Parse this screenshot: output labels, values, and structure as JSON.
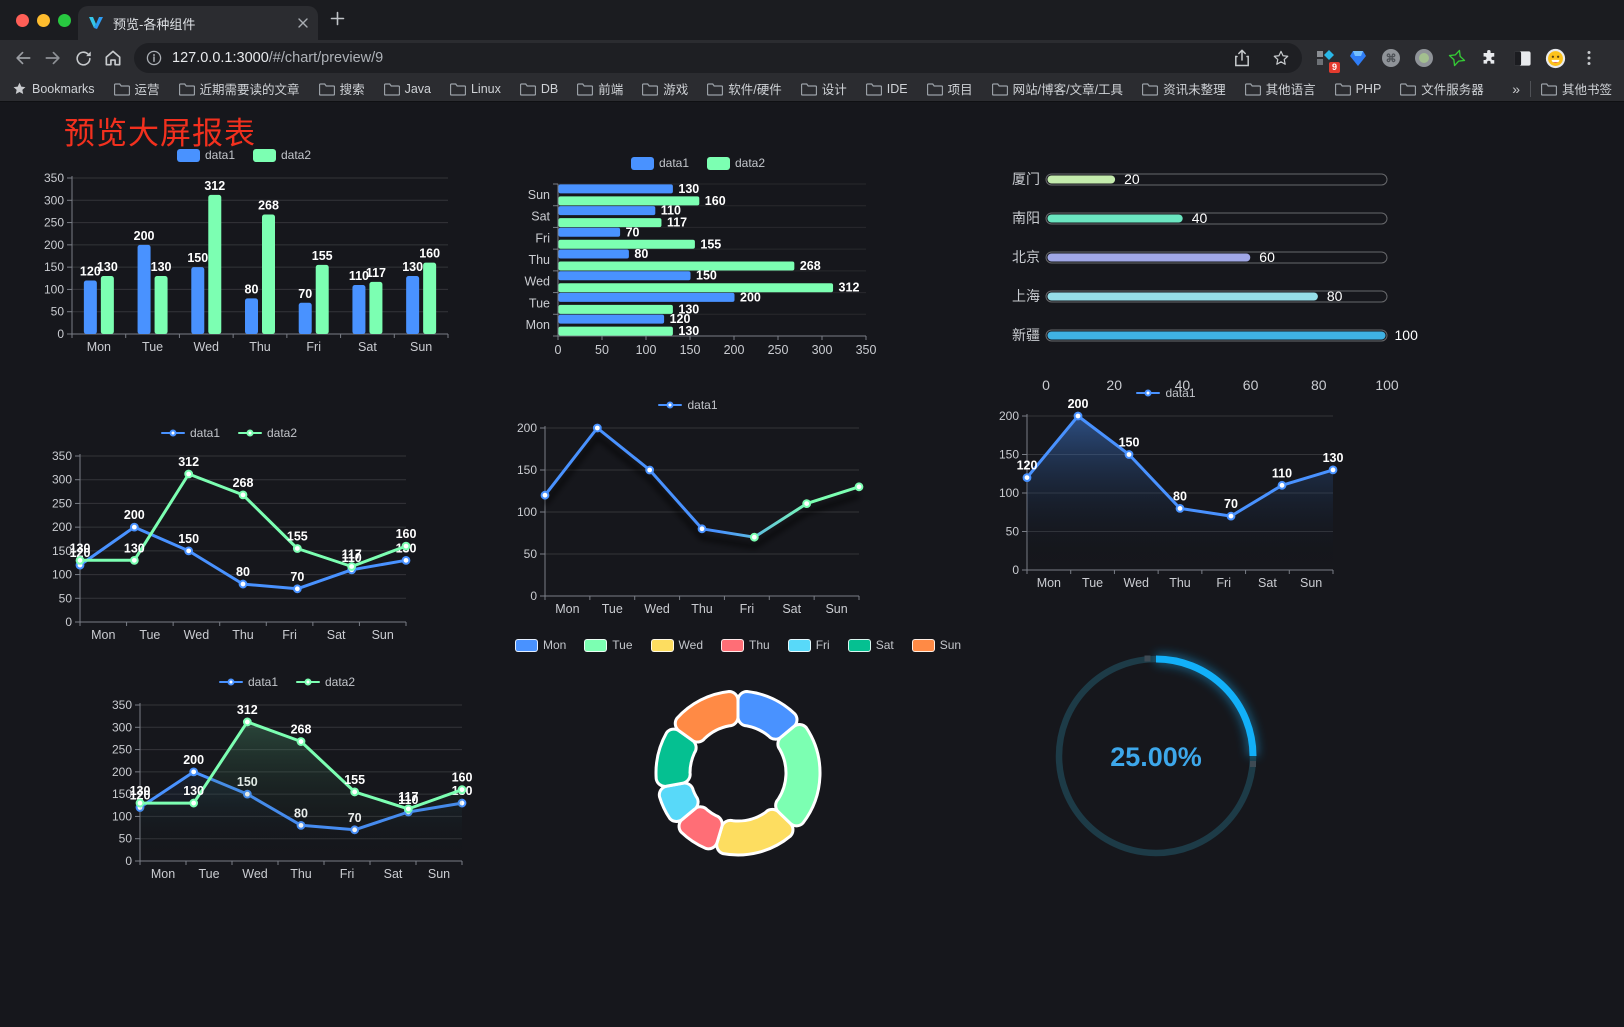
{
  "window": {
    "tab_title": "预览-各种组件",
    "url_host": "127.0.0.1:3000",
    "url_path": "/#/chart/preview/9",
    "extension_badge": "9"
  },
  "bookmarks": {
    "root_label": "Bookmarks",
    "items": [
      "运营",
      "近期需要读的文章",
      "搜索",
      "Java",
      "Linux",
      "DB",
      "前端",
      "游戏",
      "软件/硬件",
      "设计",
      "IDE",
      "项目",
      "网站/博客/文章/工具",
      "资讯未整理",
      "其他语言",
      "PHP",
      "文件服务器"
    ],
    "overflow_label": "»",
    "other_label": "其他书签"
  },
  "page": {
    "title": "预览大屏报表",
    "title_color": "#f2301e",
    "background": "#16171c"
  },
  "icons": [
    "back-icon",
    "forward-icon",
    "reload-icon",
    "home-icon",
    "info-icon",
    "share-icon",
    "star-icon",
    "folder-icon",
    "puzzle-icon",
    "menu-dots-icon",
    "close-icon",
    "new-tab-icon"
  ],
  "chart_data": [
    {
      "id": "bar-vertical",
      "type": "bar",
      "legend": true,
      "legend_icon": "rect",
      "categories": [
        "Mon",
        "Tue",
        "Wed",
        "Thu",
        "Fri",
        "Sat",
        "Sun"
      ],
      "series": [
        {
          "name": "data1",
          "color": "#4992ff",
          "values": [
            120,
            200,
            150,
            80,
            70,
            110,
            130
          ]
        },
        {
          "name": "data2",
          "color": "#7cffb2",
          "values": [
            130,
            130,
            312,
            268,
            155,
            117,
            160
          ]
        }
      ],
      "ylim": [
        0,
        350
      ],
      "ystep": 50,
      "labels": true
    },
    {
      "id": "bar-horizontal",
      "type": "hbar",
      "legend": true,
      "legend_icon": "rect",
      "categories": [
        "Mon",
        "Tue",
        "Wed",
        "Thu",
        "Fri",
        "Sat",
        "Sun"
      ],
      "series": [
        {
          "name": "data1",
          "color": "#4992ff",
          "values": [
            120,
            200,
            150,
            80,
            70,
            110,
            130
          ]
        },
        {
          "name": "data2",
          "color": "#7cffb2",
          "values": [
            130,
            130,
            312,
            268,
            155,
            117,
            160
          ]
        }
      ],
      "xlim": [
        0,
        350
      ],
      "xstep": 50,
      "labels": true
    },
    {
      "id": "progress-bars",
      "type": "progress",
      "max": 100,
      "ticks": [
        0,
        20,
        40,
        60,
        80,
        100
      ],
      "items": [
        {
          "label": "厦门",
          "value": 20,
          "color": "#c4ebad"
        },
        {
          "label": "南阳",
          "value": 40,
          "color": "#6be6c1"
        },
        {
          "label": "北京",
          "value": 60,
          "color": "#a0a7e6"
        },
        {
          "label": "上海",
          "value": 80,
          "color": "#96dee8"
        },
        {
          "label": "新疆",
          "value": 100,
          "color": "#3fb1e3"
        }
      ]
    },
    {
      "id": "line-two-series",
      "type": "line",
      "legend": true,
      "legend_icon": "line",
      "categories": [
        "Mon",
        "Tue",
        "Wed",
        "Thu",
        "Fri",
        "Sat",
        "Sun"
      ],
      "series": [
        {
          "name": "data1",
          "color": "#4992ff",
          "values": [
            120,
            200,
            150,
            80,
            70,
            110,
            130
          ]
        },
        {
          "name": "data2",
          "color": "#7cffb2",
          "values": [
            130,
            130,
            312,
            268,
            155,
            117,
            160
          ]
        }
      ],
      "ylim": [
        0,
        350
      ],
      "ystep": 50,
      "labels": true
    },
    {
      "id": "line-gradient",
      "type": "line",
      "legend": true,
      "legend_icon": "line",
      "categories": [
        "Mon",
        "Tue",
        "Wed",
        "Thu",
        "Fri",
        "Sat",
        "Sun"
      ],
      "series": [
        {
          "name": "data1",
          "color": "#4992ff",
          "color_end": "#7cffb2",
          "values": [
            120,
            200,
            150,
            80,
            70,
            110,
            130
          ]
        }
      ],
      "ylim": [
        0,
        200
      ],
      "ystep": 50,
      "labels": false,
      "gradient": true,
      "shadow": true
    },
    {
      "id": "line-area",
      "type": "line",
      "legend": true,
      "legend_icon": "line",
      "categories": [
        "Mon",
        "Tue",
        "Wed",
        "Thu",
        "Fri",
        "Sat",
        "Sun"
      ],
      "series": [
        {
          "name": "data1",
          "color": "#4992ff",
          "values": [
            120,
            200,
            150,
            80,
            70,
            110,
            130
          ],
          "area": "rgba(73,146,255,0.45)"
        }
      ],
      "ylim": [
        0,
        200
      ],
      "ystep": 50,
      "labels": true
    },
    {
      "id": "area-two-series",
      "type": "line",
      "legend": true,
      "legend_icon": "line",
      "categories": [
        "Mon",
        "Tue",
        "Wed",
        "Thu",
        "Fri",
        "Sat",
        "Sun"
      ],
      "series": [
        {
          "name": "data1",
          "color": "#4992ff",
          "values": [
            120,
            200,
            150,
            80,
            70,
            110,
            130
          ],
          "area": "rgba(73,146,255,0.32)"
        },
        {
          "name": "data2",
          "color": "#7cffb2",
          "values": [
            130,
            130,
            312,
            268,
            155,
            117,
            160
          ],
          "area": "rgba(109,224,158,0.30)"
        }
      ],
      "ylim": [
        0,
        350
      ],
      "ystep": 50,
      "labels": true
    },
    {
      "id": "donut",
      "type": "pie",
      "legend": true,
      "legend_icon": "rect-bordered",
      "items": [
        {
          "label": "Mon",
          "value": 120,
          "color": "#4992ff"
        },
        {
          "label": "Tue",
          "value": 200,
          "color": "#7cffb2"
        },
        {
          "label": "Wed",
          "value": 150,
          "color": "#fddd60"
        },
        {
          "label": "Thu",
          "value": 80,
          "color": "#ff6e76"
        },
        {
          "label": "Fri",
          "value": 70,
          "color": "#58d9f9"
        },
        {
          "label": "Sat",
          "value": 110,
          "color": "#05c091"
        },
        {
          "label": "Sun",
          "value": 130,
          "color": "#ff8a45"
        }
      ]
    },
    {
      "id": "gauge",
      "type": "gauge",
      "value": 25,
      "max": 100,
      "display": "25.00%",
      "progress_color": "#12b0f9",
      "track_color": "#1d3b47",
      "text_color": "#3da7ea"
    }
  ]
}
